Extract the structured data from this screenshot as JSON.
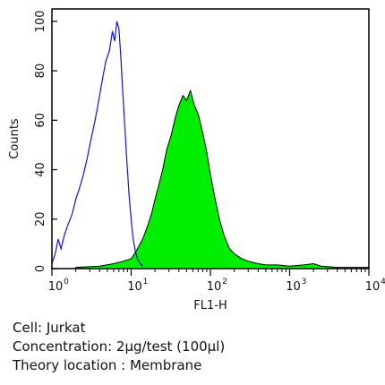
{
  "chart_data": {
    "type": "area",
    "x_scale": "log",
    "xlim": [
      1,
      10000
    ],
    "ylim": [
      0,
      105
    ],
    "xlabel": "FL1-H",
    "ylabel": "Counts",
    "x_ticks": [
      {
        "base": "10",
        "exp": "0",
        "value": 1
      },
      {
        "base": "10",
        "exp": "1",
        "value": 10
      },
      {
        "base": "10",
        "exp": "2",
        "value": 100
      },
      {
        "base": "10",
        "exp": "3",
        "value": 1000
      },
      {
        "base": "10",
        "exp": "4",
        "value": 10000
      }
    ],
    "y_ticks": [
      0,
      20,
      40,
      60,
      80,
      100
    ],
    "grid": false,
    "series": [
      {
        "style": "outline",
        "color": "#1414cc",
        "x": [
          1.0,
          1.1,
          1.2,
          1.3,
          1.45,
          1.6,
          1.8,
          2.0,
          2.2,
          2.5,
          2.8,
          3.1,
          3.5,
          3.9,
          4.3,
          4.8,
          5.3,
          5.8,
          6.2,
          6.6,
          7.0,
          7.4,
          7.8,
          8.3,
          8.8,
          9.4,
          10.0,
          10.6,
          11.3,
          12.0,
          13.0,
          14.0
        ],
        "y": [
          2,
          6,
          12,
          8,
          14,
          18,
          22,
          28,
          32,
          38,
          45,
          52,
          60,
          68,
          76,
          84,
          88,
          96,
          92,
          100,
          97,
          86,
          72,
          58,
          44,
          30,
          20,
          12,
          7,
          4,
          2,
          1
        ]
      },
      {
        "style": "filled",
        "color": "#00ee00",
        "x": [
          2,
          4,
          6,
          8,
          10,
          11,
          12,
          14,
          16,
          18,
          20,
          22,
          25,
          28,
          32,
          36,
          40,
          45,
          50,
          56,
          63,
          71,
          80,
          90,
          100,
          115,
          130,
          150,
          175,
          200,
          250,
          300,
          400,
          500,
          700,
          1000,
          1500,
          2000,
          2500,
          4000,
          7000,
          10000
        ],
        "y": [
          0.5,
          1,
          2,
          3,
          4,
          6,
          8,
          12,
          17,
          22,
          28,
          33,
          40,
          48,
          54,
          61,
          66,
          70,
          68,
          72,
          66,
          62,
          55,
          47,
          38,
          28,
          20,
          13,
          8,
          6,
          4,
          3,
          2,
          1.5,
          1.5,
          1,
          1.5,
          2,
          1,
          0.5,
          0.5,
          0.5
        ]
      }
    ]
  },
  "caption": {
    "cell": "Cell: Jurkat",
    "concentration": "Concentration: 2µg/test (100µl)",
    "location": "Theory location : Membrane"
  }
}
